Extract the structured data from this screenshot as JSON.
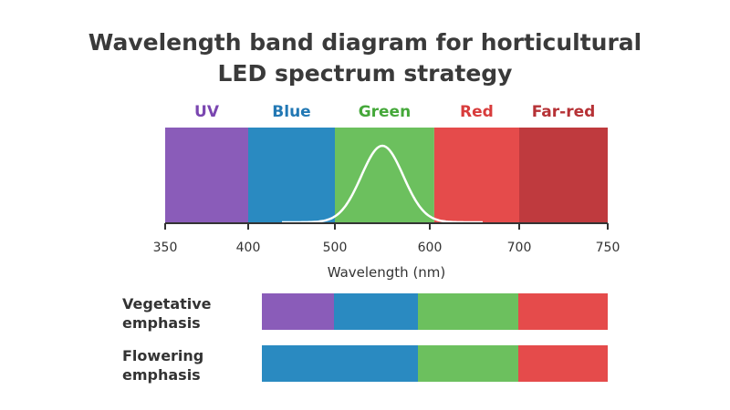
{
  "title": {
    "line1": "Wavelength band diagram for horticultural",
    "line2": "LED spectrum strategy"
  },
  "bands": [
    {
      "label": "UV",
      "start": 350,
      "end": 400,
      "fill": "#8a5cb9",
      "label_color": "#7a46b0"
    },
    {
      "label": "Blue",
      "start": 400,
      "end": 500,
      "fill": "#2a8ac1",
      "label_color": "#2278b4"
    },
    {
      "label": "Green",
      "start": 500,
      "end": 605,
      "fill": "#6cc05e",
      "label_color": "#45a83a"
    },
    {
      "label": "Red",
      "start": 605,
      "end": 700,
      "fill": "#e54b4b",
      "label_color": "#d83c3c"
    },
    {
      "label": "Far-red",
      "start": 700,
      "end": 750,
      "fill": "#bf3a3e",
      "label_color": "#b63236"
    }
  ],
  "x_axis": {
    "label": "Wavelength (nm)",
    "min": 350,
    "max": 750,
    "ticks": [
      "350",
      "400",
      "500",
      "600",
      "700",
      "750"
    ]
  },
  "curve": {
    "center_nm": 550,
    "color": "#ffffff"
  },
  "strategies": [
    {
      "label_line1": "Vegetative",
      "label_line2": "emphasis",
      "segments": [
        {
          "band": "UV",
          "fill": "#8a5cb9"
        },
        {
          "band": "Blue",
          "fill": "#2a8ac1"
        },
        {
          "band": "Green",
          "fill": "#6cc05e"
        },
        {
          "band": "Red",
          "fill": "#e54b4b"
        }
      ]
    },
    {
      "label_line1": "Flowering",
      "label_line2": "emphasis",
      "segments": [
        {
          "band": "Blue",
          "fill": "#2a8ac1"
        },
        {
          "band": "Green",
          "fill": "#6cc05e"
        },
        {
          "band": "Red",
          "fill": "#e54b4b"
        }
      ]
    }
  ],
  "colors": {
    "axis": "#333333",
    "text": "#333333"
  }
}
